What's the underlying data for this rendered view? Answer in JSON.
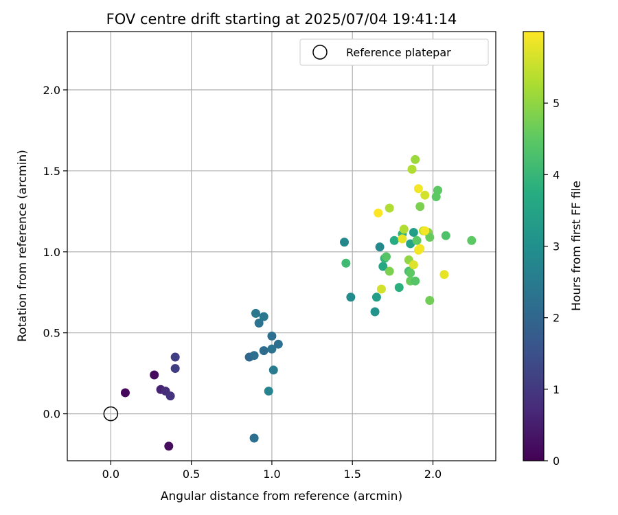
{
  "chart_data": {
    "type": "scatter",
    "title": "FOV centre drift starting at 2025/07/04 19:41:14",
    "xlabel": "Angular distance from reference (arcmin)",
    "ylabel": "Rotation from reference (arcmin)",
    "xlim": [
      -0.27,
      2.39
    ],
    "ylim": [
      -0.29,
      2.36
    ],
    "xticks": [
      0.0,
      0.5,
      1.0,
      1.5,
      2.0
    ],
    "xtick_labels": [
      "0.0",
      "0.5",
      "1.0",
      "1.5",
      "2.0"
    ],
    "yticks": [
      0.0,
      0.5,
      1.0,
      1.5,
      2.0
    ],
    "ytick_labels": [
      "0.0",
      "0.5",
      "1.0",
      "1.5",
      "2.0"
    ],
    "grid": true,
    "legend": {
      "position": "top-right",
      "entries": [
        "Reference platepar"
      ]
    },
    "colorbar": {
      "label": "Hours from first FF file",
      "colormap": "viridis",
      "range": [
        0,
        6.0
      ],
      "ticks": [
        0,
        1,
        2,
        3,
        4,
        5
      ],
      "tick_labels": [
        "0",
        "1",
        "2",
        "3",
        "4",
        "5"
      ]
    },
    "reference_point": {
      "x": 0.0,
      "y": 0.0,
      "label": "Reference platepar"
    },
    "series": [
      {
        "x": [
          0.09,
          0.27,
          0.31,
          0.34,
          0.37,
          0.4,
          0.4,
          0.36,
          0.86,
          0.89,
          0.9,
          0.92,
          0.95,
          0.95,
          0.98,
          1.0,
          1.0,
          1.01,
          1.04,
          0.89,
          1.45,
          1.46,
          1.49,
          1.64,
          1.65,
          1.67,
          1.69,
          1.7,
          1.71,
          1.73,
          1.76,
          1.79,
          1.81,
          1.82,
          1.85,
          1.85,
          1.86,
          1.86,
          1.86,
          1.87,
          1.88,
          1.89,
          1.89,
          1.9,
          1.91,
          1.92,
          1.92,
          1.94,
          1.95,
          1.97,
          1.98,
          1.98,
          2.02,
          2.03,
          2.08,
          2.24,
          1.66,
          1.68,
          1.73,
          1.88,
          1.95,
          2.07,
          1.91,
          1.81
        ],
        "y": [
          0.13,
          0.24,
          0.15,
          0.14,
          0.11,
          0.35,
          0.28,
          -0.2,
          0.35,
          0.36,
          0.62,
          0.56,
          0.6,
          0.39,
          0.14,
          0.48,
          0.4,
          0.27,
          0.43,
          -0.15,
          1.06,
          0.93,
          0.72,
          0.63,
          0.72,
          1.03,
          0.91,
          0.96,
          0.97,
          0.88,
          1.07,
          0.78,
          1.11,
          1.14,
          0.95,
          0.88,
          0.82,
          0.87,
          1.05,
          1.51,
          1.12,
          1.57,
          0.82,
          1.07,
          1.39,
          1.28,
          1.02,
          1.13,
          1.35,
          1.12,
          1.09,
          0.7,
          1.34,
          1.38,
          1.1,
          1.07,
          1.24,
          0.77,
          1.27,
          0.92,
          1.13,
          0.86,
          1.01,
          1.08
        ],
        "hours": [
          0.1,
          0.2,
          0.6,
          0.8,
          0.9,
          1.1,
          1.1,
          0.2,
          2.0,
          2.2,
          2.4,
          2.3,
          2.4,
          2.1,
          2.7,
          2.2,
          2.3,
          2.5,
          2.2,
          2.2,
          2.8,
          4.1,
          2.9,
          3.1,
          3.3,
          2.8,
          3.6,
          3.9,
          4.4,
          4.8,
          3.7,
          3.8,
          3.9,
          5.3,
          5.0,
          4.2,
          4.6,
          4.5,
          3.5,
          5.3,
          3.4,
          5.1,
          4.4,
          4.5,
          5.9,
          4.8,
          5.9,
          5.4,
          5.6,
          4.9,
          4.6,
          4.7,
          4.5,
          4.5,
          4.3,
          4.5,
          6.0,
          5.6,
          5.3,
          5.7,
          5.9,
          5.8,
          5.9,
          5.8
        ]
      }
    ]
  }
}
